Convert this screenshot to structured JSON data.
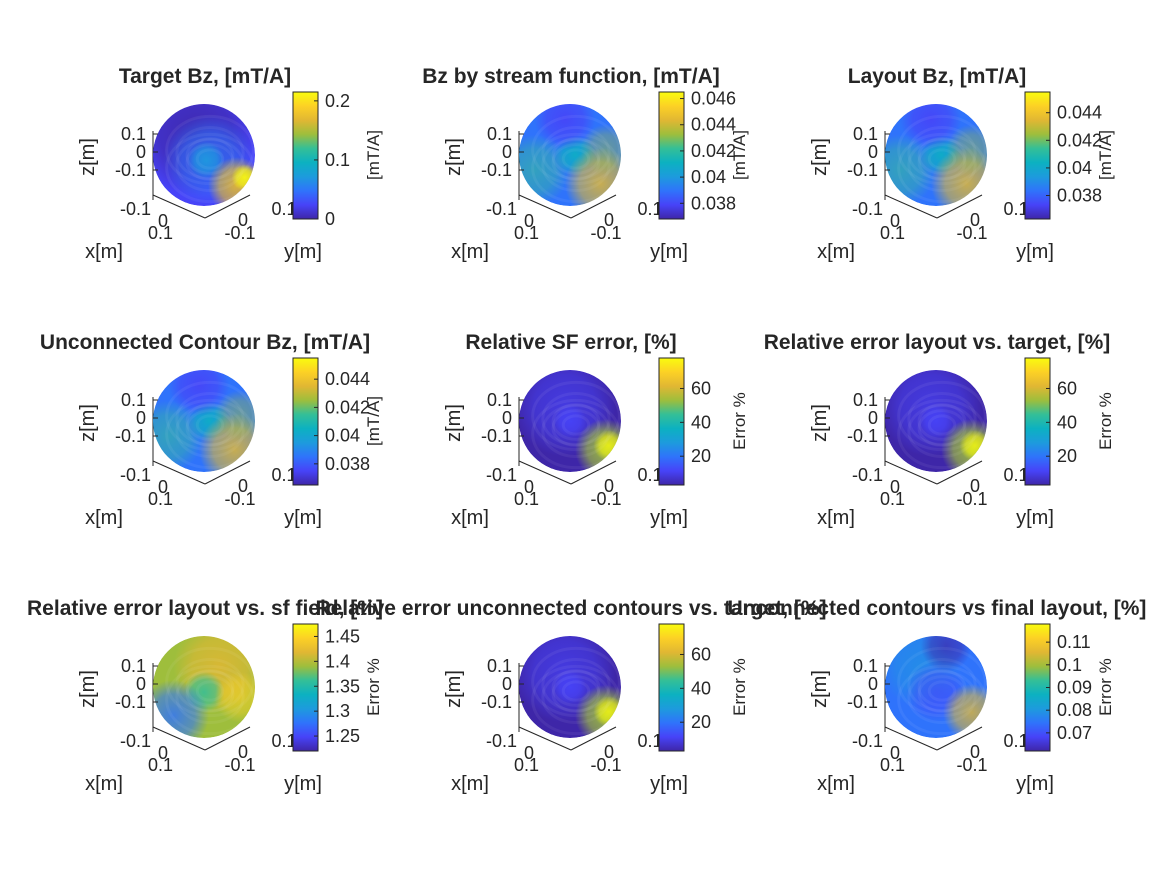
{
  "colors": {
    "colormap": [
      "#3e26a8",
      "#4743f8",
      "#2f73fb",
      "#1d9bdd",
      "#0cb1c1",
      "#34bf97",
      "#9ebe3c",
      "#e1b733",
      "#fcd125",
      "#f9fb0e"
    ],
    "axis": "#262626"
  },
  "chart_data": [
    {
      "type": "heatmap",
      "title": "Target Bz, [mT/A]",
      "xlabel": "x[m]",
      "ylabel": "y[m]",
      "zlabel": "z[m]",
      "x_ticks": [
        "-0.1",
        "0",
        "0.1"
      ],
      "y_ticks": [
        "-0.1",
        "0",
        "0.1"
      ],
      "z_ticks": [
        "0.1",
        "0",
        "-0.1"
      ],
      "colorbar": {
        "ticks": [
          "0.2",
          "0.1",
          "0"
        ],
        "tick_values": [
          0.2,
          0.1,
          0
        ],
        "label": "[mT/A]",
        "clim": [
          0,
          0.215
        ]
      },
      "pattern": "target"
    },
    {
      "type": "heatmap",
      "title": "Bz by stream function, [mT/A]",
      "xlabel": "x[m]",
      "ylabel": "y[m]",
      "zlabel": "z[m]",
      "x_ticks": [
        "-0.1",
        "0",
        "0.1"
      ],
      "y_ticks": [
        "-0.1",
        "0",
        "0.1"
      ],
      "z_ticks": [
        "0.1",
        "0",
        "-0.1"
      ],
      "colorbar": {
        "ticks": [
          "0.046",
          "0.044",
          "0.042",
          "0.04",
          "0.038"
        ],
        "tick_values": [
          0.046,
          0.044,
          0.042,
          0.04,
          0.038
        ],
        "label": "[mT/A]",
        "clim": [
          0.0368,
          0.0465
        ]
      },
      "pattern": "field"
    },
    {
      "type": "heatmap",
      "title": "Layout Bz, [mT/A]",
      "xlabel": "x[m]",
      "ylabel": "y[m]",
      "zlabel": "z[m]",
      "x_ticks": [
        "-0.1",
        "0",
        "0.1"
      ],
      "y_ticks": [
        "-0.1",
        "0",
        "0.1"
      ],
      "z_ticks": [
        "0.1",
        "0",
        "-0.1"
      ],
      "colorbar": {
        "ticks": [
          "0.044",
          "0.042",
          "0.04",
          "0.038"
        ],
        "tick_values": [
          0.044,
          0.042,
          0.04,
          0.038
        ],
        "label": "[mT/A]",
        "clim": [
          0.0363,
          0.0455
        ]
      },
      "pattern": "field"
    },
    {
      "type": "heatmap",
      "title": "Unconnected Contour Bz, [mT/A]",
      "xlabel": "x[m]",
      "ylabel": "y[m]",
      "zlabel": "z[m]",
      "x_ticks": [
        "-0.1",
        "0",
        "0.1"
      ],
      "y_ticks": [
        "-0.1",
        "0",
        "0.1"
      ],
      "z_ticks": [
        "0.1",
        "0",
        "-0.1"
      ],
      "colorbar": {
        "ticks": [
          "0.044",
          "0.042",
          "0.04",
          "0.038"
        ],
        "tick_values": [
          0.044,
          0.042,
          0.04,
          0.038
        ],
        "label": "[mT/A]",
        "clim": [
          0.0365,
          0.0455
        ]
      },
      "pattern": "field"
    },
    {
      "type": "heatmap",
      "title": "Relative SF error, [%]",
      "xlabel": "x[m]",
      "ylabel": "y[m]",
      "zlabel": "z[m]",
      "x_ticks": [
        "-0.1",
        "0",
        "0.1"
      ],
      "y_ticks": [
        "-0.1",
        "0",
        "0.1"
      ],
      "z_ticks": [
        "0.1",
        "0",
        "-0.1"
      ],
      "colorbar": {
        "ticks": [
          "60",
          "40",
          "20"
        ],
        "tick_values": [
          60,
          40,
          20
        ],
        "label": "Error %",
        "clim": [
          3,
          78
        ]
      },
      "pattern": "error"
    },
    {
      "type": "heatmap",
      "title": "Relative error layout vs. target, [%]",
      "xlabel": "x[m]",
      "ylabel": "y[m]",
      "zlabel": "z[m]",
      "x_ticks": [
        "-0.1",
        "0",
        "0.1"
      ],
      "y_ticks": [
        "-0.1",
        "0",
        "0.1"
      ],
      "z_ticks": [
        "0.1",
        "0",
        "-0.1"
      ],
      "colorbar": {
        "ticks": [
          "60",
          "40",
          "20"
        ],
        "tick_values": [
          60,
          40,
          20
        ],
        "label": "Error %",
        "clim": [
          3,
          78
        ]
      },
      "pattern": "error"
    },
    {
      "type": "heatmap",
      "title": "Relative error layout vs. sf field, [%]",
      "xlabel": "x[m]",
      "ylabel": "y[m]",
      "zlabel": "z[m]",
      "x_ticks": [
        "-0.1",
        "0",
        "0.1"
      ],
      "y_ticks": [
        "-0.1",
        "0",
        "0.1"
      ],
      "z_ticks": [
        "0.1",
        "0",
        "-0.1"
      ],
      "colorbar": {
        "ticks": [
          "1.45",
          "1.4",
          "1.35",
          "1.3",
          "1.25"
        ],
        "tick_values": [
          1.45,
          1.4,
          1.35,
          1.3,
          1.25
        ],
        "label": "Error %",
        "clim": [
          1.22,
          1.475
        ]
      },
      "pattern": "sferror"
    },
    {
      "type": "heatmap",
      "title": "Relative error unconnected contours vs. target, [%]",
      "xlabel": "x[m]",
      "ylabel": "y[m]",
      "zlabel": "z[m]",
      "x_ticks": [
        "-0.1",
        "0",
        "0.1"
      ],
      "y_ticks": [
        "-0.1",
        "0",
        "0.1"
      ],
      "z_ticks": [
        "0.1",
        "0",
        "-0.1"
      ],
      "colorbar": {
        "ticks": [
          "60",
          "40",
          "20"
        ],
        "tick_values": [
          60,
          40,
          20
        ],
        "label": "Error %",
        "clim": [
          3,
          78
        ]
      },
      "pattern": "error"
    },
    {
      "type": "heatmap",
      "title": "Unconnected contours vs final layout, [%]",
      "xlabel": "x[m]",
      "ylabel": "y[m]",
      "zlabel": "z[m]",
      "x_ticks": [
        "-0.1",
        "0",
        "0.1"
      ],
      "y_ticks": [
        "-0.1",
        "0",
        "0.1"
      ],
      "z_ticks": [
        "0.1",
        "0",
        "-0.1"
      ],
      "colorbar": {
        "ticks": [
          "0.11",
          "0.1",
          "0.09",
          "0.08",
          "0.07"
        ],
        "tick_values": [
          0.11,
          0.1,
          0.09,
          0.08,
          0.07
        ],
        "label": "Error %",
        "clim": [
          0.062,
          0.118
        ]
      },
      "pattern": "unconnected"
    }
  ]
}
